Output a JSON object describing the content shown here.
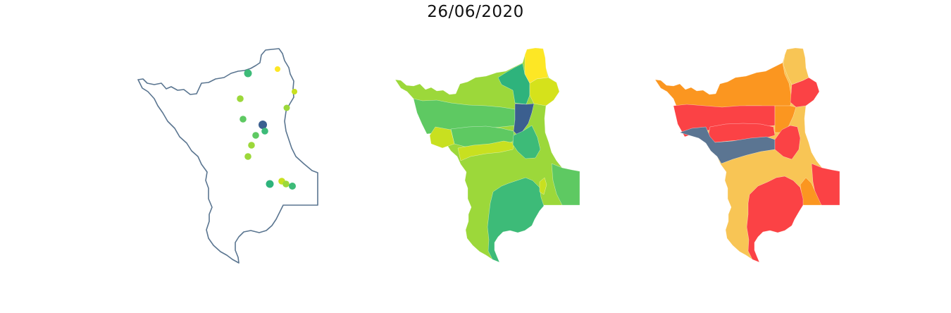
{
  "title": "26/06/2020",
  "colors": {
    "outline": "#5a7590",
    "viridis_dark_blue": "#3b5f8f",
    "viridis_teal": "#2eb37c",
    "viridis_green": "#3dbb78",
    "viridis_light_green": "#5ec962",
    "viridis_lime": "#9cd83a",
    "viridis_yellow_green": "#c8e020",
    "viridis_yellow": "#fde725",
    "risk_red": "#fb4245",
    "risk_orange": "#fb9620",
    "risk_light_orange": "#f8c555",
    "risk_slate": "#5b7592"
  },
  "panels": [
    {
      "kind": "station-points",
      "map": "state-outline"
    },
    {
      "kind": "choropleth",
      "palette": "viridis"
    },
    {
      "kind": "choropleth",
      "palette": "risk"
    }
  ],
  "stations": [
    {
      "id": 1,
      "color": "#3dbb78",
      "size": "large"
    },
    {
      "id": 2,
      "color": "#fde725",
      "size": "small"
    },
    {
      "id": 3,
      "color": "#c8e020",
      "size": "small"
    },
    {
      "id": 4,
      "color": "#9cd83a",
      "size": "medium"
    },
    {
      "id": 5,
      "color": "#9cd83a",
      "size": "small"
    },
    {
      "id": 6,
      "color": "#5ec962",
      "size": "medium"
    },
    {
      "id": 7,
      "color": "#3b5f8f",
      "size": "large"
    },
    {
      "id": 8,
      "color": "#3dbb78",
      "size": "medium"
    },
    {
      "id": 9,
      "color": "#5ec962",
      "size": "medium"
    },
    {
      "id": 10,
      "color": "#9cd83a",
      "size": "medium"
    },
    {
      "id": 11,
      "color": "#9cd83a",
      "size": "medium"
    },
    {
      "id": 12,
      "color": "#2eb37c",
      "size": "large"
    },
    {
      "id": 13,
      "color": "#c8e020",
      "size": "medium"
    },
    {
      "id": 14,
      "color": "#9cd83a",
      "size": "medium"
    },
    {
      "id": 15,
      "color": "#3dbb78",
      "size": "medium"
    }
  ]
}
